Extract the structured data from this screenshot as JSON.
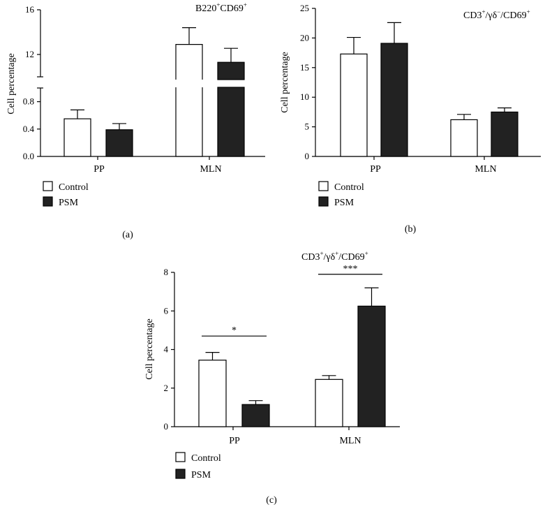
{
  "figure": {
    "panels": [
      {
        "id": "a",
        "panel_label": "(a)",
        "ylabel": "Cell percentage",
        "title_main": "B220",
        "title_sup1": "+",
        "title_mid": "CD69",
        "title_sup2": "+",
        "legend": [
          "Control",
          "PSM"
        ]
      },
      {
        "id": "b",
        "panel_label": "(b)",
        "ylabel": "Cell percentage",
        "title_main": "CD3",
        "title_sup1": "+",
        "title_mid": "/γδ",
        "title_sup2": "−",
        "title_mid2": "/CD69",
        "title_sup3": "+",
        "legend": [
          "Control",
          "PSM"
        ]
      },
      {
        "id": "c",
        "panel_label": "(c)",
        "ylabel": "Cell percentage",
        "title_main": "CD3",
        "title_sup1": "+",
        "title_mid": "/γδ",
        "title_sup2": "+",
        "title_mid2": "/CD69",
        "title_sup3": "+",
        "legend": [
          "Control",
          "PSM"
        ]
      }
    ]
  },
  "chart_data": [
    {
      "type": "bar",
      "panel": "a",
      "categories": [
        "PP",
        "MLN"
      ],
      "series": [
        {
          "name": "Control",
          "values": [
            0.55,
            12.9
          ],
          "errors": [
            0.13,
            1.5
          ],
          "color": "#ffffff"
        },
        {
          "name": "PSM",
          "values": [
            0.39,
            11.3
          ],
          "errors": [
            0.09,
            1.25
          ],
          "color": "#222222"
        }
      ],
      "ylabel": "Cell percentage",
      "axis_break": true,
      "lower_segment": {
        "ylim": [
          0,
          1.0
        ],
        "ticks": [
          "0.0",
          "0.4",
          "0.8"
        ]
      },
      "upper_segment": {
        "ylim": [
          10,
          16
        ],
        "ticks": [
          "12",
          "16"
        ]
      },
      "legend_placement": "bottom-left",
      "grid": false
    },
    {
      "type": "bar",
      "panel": "b",
      "categories": [
        "PP",
        "MLN"
      ],
      "series": [
        {
          "name": "Control",
          "values": [
            17.3,
            6.2
          ],
          "errors": [
            2.8,
            0.9
          ],
          "color": "#ffffff"
        },
        {
          "name": "PSM",
          "values": [
            19.1,
            7.5
          ],
          "errors": [
            3.5,
            0.7
          ],
          "color": "#222222"
        }
      ],
      "ylabel": "Cell percentage",
      "ylim": [
        0,
        25
      ],
      "ticks": [
        "0",
        "5",
        "10",
        "15",
        "20",
        "25"
      ],
      "legend_placement": "bottom-left",
      "grid": false
    },
    {
      "type": "bar",
      "panel": "c",
      "categories": [
        "PP",
        "MLN"
      ],
      "series": [
        {
          "name": "Control",
          "values": [
            3.45,
            2.45
          ],
          "errors": [
            0.4,
            0.2
          ],
          "color": "#ffffff"
        },
        {
          "name": "PSM",
          "values": [
            1.15,
            6.25
          ],
          "errors": [
            0.2,
            0.95
          ],
          "color": "#222222"
        }
      ],
      "ylabel": "Cell percentage",
      "ylim": [
        0,
        8
      ],
      "ticks": [
        "0",
        "2",
        "4",
        "6",
        "8"
      ],
      "significance": [
        {
          "category": "PP",
          "label": "*",
          "y": 4.7
        },
        {
          "category": "MLN",
          "label": "***",
          "y": 7.9
        }
      ],
      "legend_placement": "bottom-left",
      "grid": false
    }
  ]
}
